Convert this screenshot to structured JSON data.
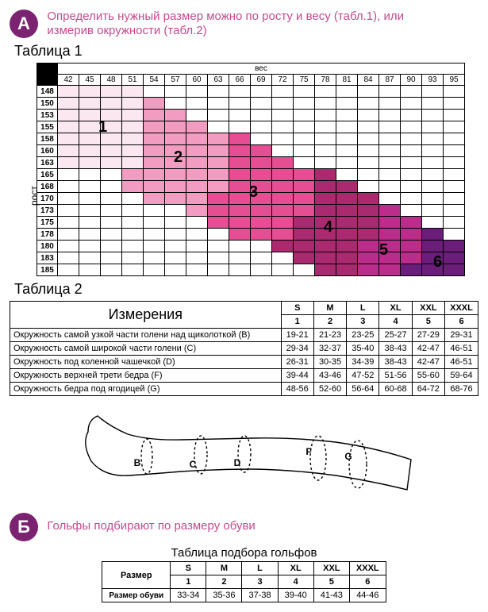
{
  "colors": {
    "badge": "#7b2271",
    "heading": "#c34b8f",
    "zone1": "#fbe7f0",
    "zone2": "#f19cc0",
    "zone3": "#e54e93",
    "zone4": "#a92a6f",
    "zone5": "#bb2d8a",
    "zone6": "#6a1e7a"
  },
  "sectionA": {
    "badge": "А",
    "title": "Определить нужный размер можно по росту и весу (табл.1), или измерив окружности (табл.2)"
  },
  "sectionB": {
    "badge": "Б",
    "title": "Гольфы подбирают по размеру обуви"
  },
  "table1": {
    "caption": "Таблица 1",
    "axis_x": "вес",
    "axis_y": "рост",
    "weights": [
      42,
      45,
      48,
      51,
      54,
      57,
      60,
      63,
      66,
      69,
      72,
      75,
      78,
      81,
      84,
      87,
      90,
      93,
      95
    ],
    "heights": [
      148,
      150,
      153,
      155,
      158,
      160,
      163,
      165,
      168,
      170,
      173,
      175,
      178,
      180,
      183,
      185
    ],
    "zone_labels": [
      "1",
      "2",
      "3",
      "4",
      "5",
      "6"
    ],
    "label_positions": [
      {
        "l": 78,
        "t": 70
      },
      {
        "l": 173,
        "t": 108
      },
      {
        "l": 268,
        "t": 152
      },
      {
        "l": 362,
        "t": 196
      },
      {
        "l": 432,
        "t": 225
      },
      {
        "l": 500,
        "t": 240
      }
    ],
    "grid": [
      [
        1,
        1,
        1,
        1,
        0,
        0,
        0,
        0,
        0,
        0,
        0,
        0,
        0,
        0,
        0,
        0,
        0,
        0,
        0
      ],
      [
        1,
        1,
        1,
        1,
        2,
        0,
        0,
        0,
        0,
        0,
        0,
        0,
        0,
        0,
        0,
        0,
        0,
        0,
        0
      ],
      [
        1,
        1,
        1,
        1,
        2,
        2,
        0,
        0,
        0,
        0,
        0,
        0,
        0,
        0,
        0,
        0,
        0,
        0,
        0
      ],
      [
        1,
        1,
        1,
        1,
        2,
        2,
        2,
        0,
        0,
        0,
        0,
        0,
        0,
        0,
        0,
        0,
        0,
        0,
        0
      ],
      [
        1,
        1,
        1,
        1,
        2,
        2,
        2,
        2,
        3,
        0,
        0,
        0,
        0,
        0,
        0,
        0,
        0,
        0,
        0
      ],
      [
        1,
        1,
        1,
        1,
        2,
        2,
        2,
        2,
        3,
        3,
        0,
        0,
        0,
        0,
        0,
        0,
        0,
        0,
        0
      ],
      [
        1,
        1,
        1,
        1,
        2,
        2,
        2,
        2,
        3,
        3,
        3,
        0,
        0,
        0,
        0,
        0,
        0,
        0,
        0
      ],
      [
        0,
        0,
        0,
        2,
        2,
        2,
        2,
        2,
        3,
        3,
        3,
        3,
        4,
        0,
        0,
        0,
        0,
        0,
        0
      ],
      [
        0,
        0,
        0,
        2,
        2,
        2,
        2,
        2,
        3,
        3,
        3,
        3,
        4,
        4,
        0,
        0,
        0,
        0,
        0
      ],
      [
        0,
        0,
        0,
        0,
        2,
        2,
        2,
        3,
        3,
        3,
        3,
        3,
        4,
        4,
        4,
        0,
        0,
        0,
        0
      ],
      [
        0,
        0,
        0,
        0,
        0,
        0,
        2,
        3,
        3,
        3,
        3,
        3,
        4,
        4,
        4,
        5,
        0,
        0,
        0
      ],
      [
        0,
        0,
        0,
        0,
        0,
        0,
        0,
        3,
        3,
        3,
        3,
        4,
        4,
        4,
        4,
        5,
        5,
        0,
        0
      ],
      [
        0,
        0,
        0,
        0,
        0,
        0,
        0,
        0,
        3,
        3,
        3,
        4,
        4,
        4,
        4,
        5,
        5,
        6,
        0
      ],
      [
        0,
        0,
        0,
        0,
        0,
        0,
        0,
        0,
        0,
        0,
        4,
        4,
        4,
        4,
        5,
        5,
        5,
        6,
        6
      ],
      [
        0,
        0,
        0,
        0,
        0,
        0,
        0,
        0,
        0,
        0,
        0,
        4,
        4,
        4,
        5,
        5,
        5,
        6,
        6
      ],
      [
        0,
        0,
        0,
        0,
        0,
        0,
        0,
        0,
        0,
        0,
        0,
        0,
        4,
        4,
        5,
        5,
        6,
        6,
        6
      ]
    ]
  },
  "table2": {
    "caption": "Таблица 2",
    "meas_header": "Измерения",
    "size_labels": [
      "S",
      "M",
      "L",
      "XL",
      "XXL",
      "XXXL"
    ],
    "size_nums": [
      "1",
      "2",
      "3",
      "4",
      "5",
      "6"
    ],
    "rows": [
      {
        "label": "Окружность самой узкой части голени над щиколоткой (B)",
        "vals": [
          "19-21",
          "21-23",
          "23-25",
          "25-27",
          "27-29",
          "29-31"
        ]
      },
      {
        "label": "Окружность самой широкой части голени (C)",
        "vals": [
          "29-34",
          "32-37",
          "35-40",
          "38-43",
          "42-47",
          "46-51"
        ]
      },
      {
        "label": "Окружность под коленной чашечкой (D)",
        "vals": [
          "26-31",
          "30-35",
          "34-39",
          "38-43",
          "42-47",
          "46-51"
        ]
      },
      {
        "label": "Окружность верхней трети бедра (F)",
        "vals": [
          "39-44",
          "43-46",
          "47-52",
          "51-56",
          "55-60",
          "59-64"
        ]
      },
      {
        "label": "Окружность бедра под ягодицей (G)",
        "vals": [
          "48-56",
          "52-60",
          "56-64",
          "60-68",
          "64-72",
          "68-76"
        ]
      }
    ]
  },
  "diagram": {
    "labels": [
      "B",
      "C",
      "D",
      "F",
      "G"
    ]
  },
  "table3": {
    "caption": "Таблица подбора гольфов",
    "row_label": "Размер",
    "shoe_label": "Размер обуви",
    "size_labels": [
      "S",
      "M",
      "L",
      "XL",
      "XXL",
      "XXXL"
    ],
    "size_nums": [
      "1",
      "2",
      "3",
      "4",
      "5",
      "6"
    ],
    "shoe": [
      "33-34",
      "35-36",
      "37-38",
      "39-40",
      "41-43",
      "44-46"
    ]
  }
}
